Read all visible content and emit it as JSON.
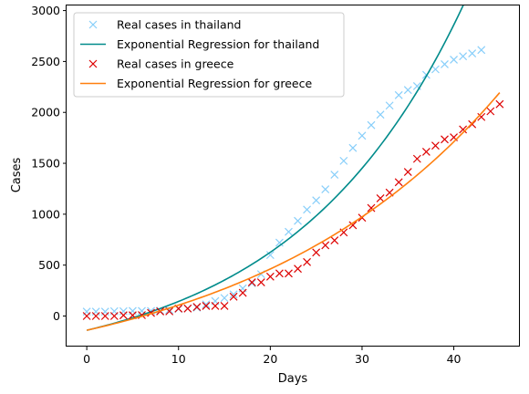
{
  "chart_data": {
    "type": "line",
    "title": "",
    "xlabel": "Days",
    "ylabel": "Cases",
    "xlim": [
      -2.2,
      47.2
    ],
    "ylim": [
      -300,
      3050
    ],
    "xticks": [
      0,
      10,
      20,
      30,
      40
    ],
    "yticks": [
      0,
      500,
      1000,
      1500,
      2000,
      2500,
      3000
    ],
    "grid": false,
    "legend_position": "top-left",
    "series": [
      {
        "name": "Real cases in thailand",
        "kind": "scatter",
        "marker": "x",
        "color": "#87cefa",
        "x": [
          0,
          1,
          2,
          3,
          4,
          5,
          6,
          7,
          8,
          9,
          10,
          11,
          12,
          13,
          14,
          15,
          16,
          17,
          18,
          19,
          20,
          21,
          22,
          23,
          24,
          25,
          26,
          27,
          28,
          29,
          30,
          31,
          32,
          33,
          34,
          35,
          36,
          37,
          38,
          39,
          40,
          41,
          42,
          43
        ],
        "y": [
          43,
          43,
          43,
          47,
          47,
          50,
          50,
          50,
          53,
          59,
          70,
          75,
          82,
          114,
          147,
          177,
          212,
          272,
          322,
          411,
          599,
          721,
          827,
          934,
          1045,
          1136,
          1245,
          1388,
          1524,
          1651,
          1771,
          1875,
          1978,
          2067,
          2169,
          2220,
          2258,
          2369,
          2423,
          2473,
          2518,
          2551,
          2579,
          2613
        ]
      },
      {
        "name": "Exponential Regression for thailand",
        "kind": "line",
        "color": "#008b8b",
        "x": [
          0,
          43
        ],
        "curve": {
          "a": 400,
          "b": 0.0535,
          "c": -540
        }
      },
      {
        "name": "Real cases in greece",
        "kind": "scatter",
        "marker": "x",
        "color": "#dd0000",
        "x": [
          0,
          1,
          2,
          3,
          4,
          5,
          6,
          7,
          8,
          9,
          10,
          11,
          12,
          13,
          14,
          15,
          16,
          17,
          18,
          19,
          20,
          21,
          22,
          23,
          24,
          25,
          26,
          27,
          28,
          29,
          30,
          31,
          32,
          33,
          34,
          35,
          36,
          37,
          38,
          39,
          40,
          41,
          42,
          43,
          44,
          45
        ],
        "y": [
          0,
          0,
          0,
          0,
          7,
          7,
          9,
          31,
          45,
          46,
          73,
          73,
          89,
          99,
          99,
          99,
          190,
          228,
          331,
          331,
          387,
          418,
          418,
          464,
          530,
          624,
          695,
          743,
          821,
          892,
          966,
          1061,
          1156,
          1212,
          1314,
          1415,
          1544,
          1613,
          1673,
          1735,
          1755,
          1832,
          1884,
          1955,
          2011,
          2081
        ]
      },
      {
        "name": "Exponential Regression for greece",
        "kind": "line",
        "color": "#ff7f0e",
        "x": [
          0,
          45
        ],
        "curve": {
          "a": 560,
          "b": 0.0365,
          "c": -700
        }
      }
    ]
  }
}
